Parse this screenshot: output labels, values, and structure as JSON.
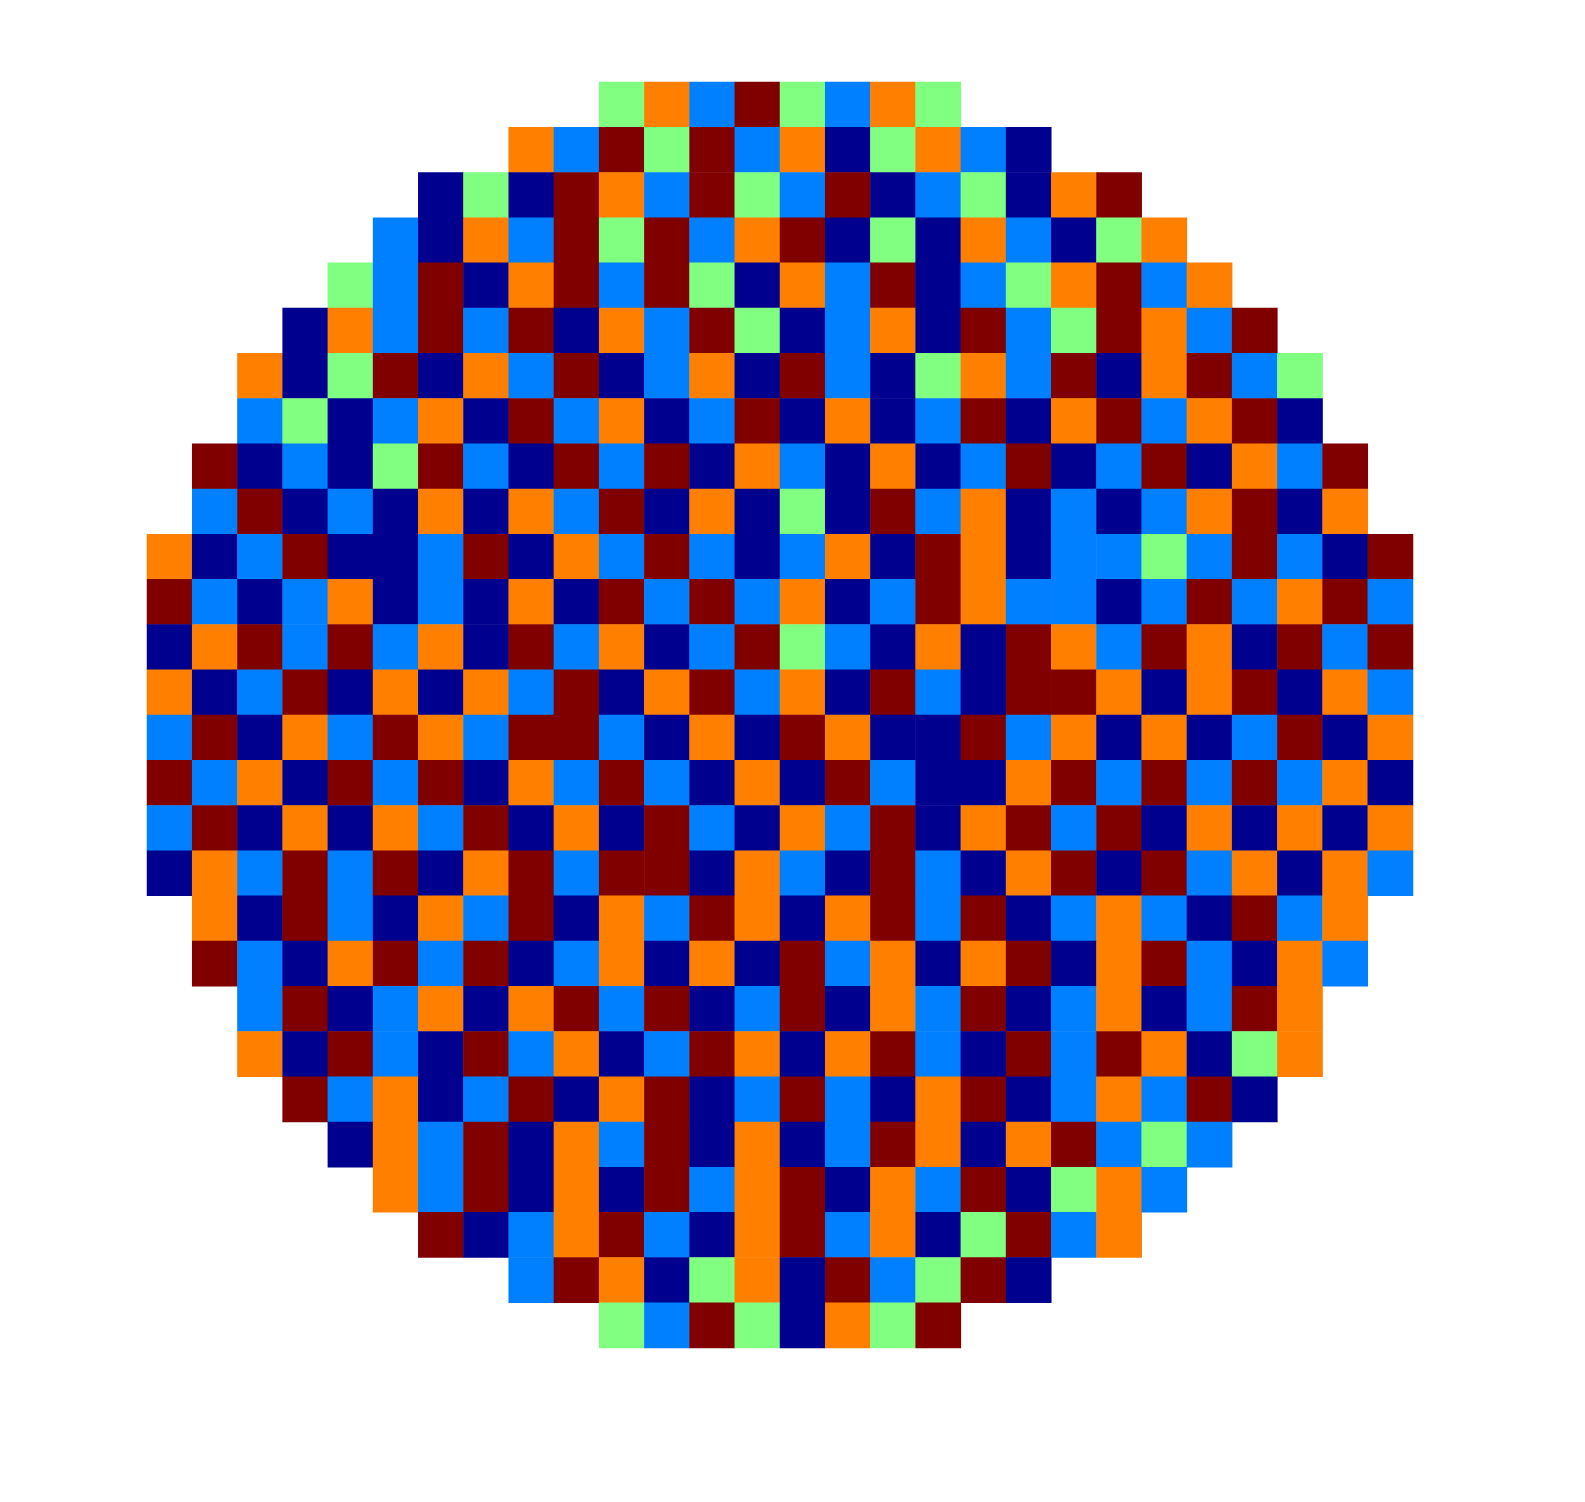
{
  "chart_data": {
    "type": "heatmap",
    "tick_labels": false,
    "value_range": [
      -2,
      2
    ],
    "cells": [
      [
        null,
        null,
        null,
        null,
        null,
        null,
        null,
        null,
        null,
        null,
        0,
        1,
        -1,
        2,
        0,
        -1,
        1,
        0,
        null,
        null,
        null,
        null,
        null,
        null,
        null,
        null,
        null,
        null
      ],
      [
        null,
        null,
        null,
        null,
        null,
        null,
        null,
        null,
        1,
        -1,
        2,
        0,
        2,
        -1,
        1,
        -2,
        0,
        1,
        -1,
        -2,
        null,
        null,
        null,
        null,
        null,
        null,
        null,
        null
      ],
      [
        null,
        null,
        null,
        null,
        null,
        null,
        -2,
        0,
        -2,
        2,
        1,
        -1,
        2,
        0,
        -1,
        2,
        -2,
        -1,
        0,
        -2,
        1,
        2,
        null,
        null,
        null,
        null,
        null,
        null
      ],
      [
        null,
        null,
        null,
        null,
        null,
        -1,
        -2,
        1,
        -1,
        2,
        0,
        2,
        -1,
        1,
        2,
        -2,
        0,
        -2,
        1,
        -1,
        -2,
        0,
        1,
        null,
        null,
        null,
        null,
        null
      ],
      [
        null,
        null,
        null,
        null,
        0,
        -1,
        2,
        -2,
        1,
        2,
        -1,
        2,
        0,
        -2,
        1,
        -1,
        2,
        -2,
        -1,
        0,
        1,
        2,
        -1,
        1,
        null,
        null,
        null,
        null
      ],
      [
        null,
        null,
        null,
        -2,
        1,
        -1,
        2,
        -1,
        2,
        -2,
        1,
        -1,
        2,
        0,
        -2,
        -1,
        1,
        -2,
        2,
        -1,
        0,
        2,
        1,
        -1,
        2,
        null,
        null,
        null
      ],
      [
        null,
        null,
        1,
        -2,
        0,
        2,
        -2,
        1,
        -1,
        2,
        -2,
        -1,
        1,
        -2,
        2,
        -1,
        -2,
        0,
        1,
        -1,
        2,
        -2,
        1,
        2,
        -1,
        0,
        null,
        null
      ],
      [
        null,
        null,
        -1,
        0,
        -2,
        -1,
        1,
        -2,
        2,
        -1,
        1,
        -2,
        -1,
        2,
        -2,
        1,
        -2,
        -1,
        2,
        -2,
        1,
        2,
        -1,
        1,
        2,
        -2,
        null,
        null
      ],
      [
        null,
        2,
        -2,
        -1,
        -2,
        0,
        2,
        -1,
        -2,
        2,
        -1,
        2,
        -2,
        1,
        -1,
        -2,
        1,
        -2,
        -1,
        2,
        -2,
        -1,
        2,
        -2,
        1,
        -1,
        2,
        null
      ],
      [
        null,
        -1,
        2,
        -2,
        -1,
        -2,
        1,
        -2,
        1,
        -1,
        2,
        -2,
        1,
        -2,
        0,
        -2,
        2,
        -1,
        1,
        -2,
        -1,
        -2,
        -1,
        1,
        2,
        -2,
        1,
        null
      ],
      [
        1,
        -2,
        -1,
        2,
        -2,
        -2,
        -1,
        2,
        -2,
        1,
        -1,
        2,
        -1,
        -2,
        -1,
        1,
        -2,
        2,
        1,
        -2,
        -1,
        -1,
        0,
        -1,
        2,
        -1,
        -2,
        2
      ],
      [
        2,
        -1,
        -2,
        -1,
        1,
        -2,
        -1,
        -2,
        1,
        -2,
        2,
        -1,
        2,
        -1,
        1,
        -2,
        -1,
        2,
        1,
        -1,
        -1,
        -2,
        -1,
        2,
        -1,
        1,
        2,
        -1
      ],
      [
        -2,
        1,
        2,
        -1,
        2,
        -1,
        1,
        -2,
        2,
        -1,
        1,
        -2,
        -1,
        2,
        0,
        -1,
        -2,
        1,
        -2,
        2,
        1,
        -1,
        2,
        1,
        -2,
        2,
        -1,
        2
      ],
      [
        1,
        -2,
        -1,
        2,
        -2,
        1,
        -2,
        1,
        -1,
        2,
        -2,
        1,
        2,
        -1,
        1,
        -2,
        2,
        -1,
        -2,
        2,
        2,
        1,
        -2,
        1,
        2,
        -2,
        1,
        -1
      ],
      [
        -1,
        2,
        -2,
        1,
        -1,
        2,
        1,
        -1,
        2,
        2,
        -1,
        -2,
        1,
        -2,
        2,
        1,
        -2,
        -2,
        2,
        -1,
        1,
        -2,
        1,
        -2,
        -1,
        2,
        -2,
        1
      ],
      [
        2,
        -1,
        1,
        -2,
        2,
        -1,
        2,
        -2,
        1,
        -1,
        2,
        -1,
        -2,
        1,
        -2,
        2,
        -1,
        -2,
        -2,
        1,
        2,
        -1,
        2,
        -1,
        2,
        -1,
        1,
        -2
      ],
      [
        -1,
        2,
        -2,
        1,
        -2,
        1,
        -1,
        2,
        -2,
        1,
        -2,
        2,
        -1,
        -2,
        1,
        -1,
        2,
        -2,
        1,
        2,
        -1,
        2,
        -2,
        1,
        -2,
        1,
        -2,
        1
      ],
      [
        -2,
        1,
        -1,
        2,
        -1,
        2,
        -2,
        1,
        2,
        -1,
        2,
        2,
        -2,
        1,
        -1,
        -2,
        2,
        -1,
        -2,
        1,
        2,
        -2,
        2,
        -1,
        1,
        -2,
        1,
        -1
      ],
      [
        null,
        1,
        -2,
        2,
        -1,
        -2,
        1,
        -1,
        2,
        -2,
        1,
        -1,
        2,
        1,
        -2,
        1,
        2,
        -1,
        2,
        -2,
        -1,
        1,
        -1,
        -2,
        2,
        -1,
        1,
        null
      ],
      [
        null,
        2,
        -1,
        -2,
        1,
        2,
        -1,
        2,
        -2,
        -1,
        1,
        -2,
        1,
        -2,
        2,
        -1,
        1,
        -2,
        1,
        2,
        -2,
        1,
        2,
        -1,
        -2,
        1,
        -1,
        null
      ],
      [
        null,
        null,
        -1,
        2,
        -2,
        -1,
        1,
        -2,
        1,
        2,
        -1,
        2,
        -2,
        -1,
        2,
        -2,
        1,
        -1,
        2,
        -2,
        -1,
        1,
        -2,
        -1,
        2,
        1,
        null,
        null
      ],
      [
        null,
        null,
        1,
        -2,
        2,
        -1,
        -2,
        2,
        -1,
        1,
        -2,
        -1,
        2,
        1,
        -2,
        1,
        2,
        -1,
        -2,
        2,
        -1,
        2,
        1,
        -2,
        0,
        1,
        null,
        null
      ],
      [
        null,
        null,
        null,
        2,
        -1,
        1,
        -2,
        -1,
        2,
        -2,
        1,
        2,
        -2,
        -1,
        2,
        -1,
        -2,
        1,
        2,
        -2,
        -1,
        1,
        -1,
        2,
        -2,
        null,
        null,
        null
      ],
      [
        null,
        null,
        null,
        null,
        -2,
        1,
        -1,
        2,
        -2,
        1,
        -1,
        2,
        -2,
        1,
        -2,
        -1,
        2,
        1,
        -2,
        1,
        2,
        -1,
        0,
        -1,
        null,
        null,
        null,
        null
      ],
      [
        null,
        null,
        null,
        null,
        null,
        1,
        -1,
        2,
        -2,
        1,
        -2,
        2,
        -1,
        1,
        2,
        -2,
        1,
        -1,
        2,
        -2,
        0,
        1,
        -1,
        null,
        null,
        null,
        null,
        null
      ],
      [
        null,
        null,
        null,
        null,
        null,
        null,
        2,
        -2,
        -1,
        1,
        2,
        -1,
        -2,
        1,
        2,
        -1,
        1,
        -2,
        0,
        2,
        -1,
        1,
        null,
        null,
        null,
        null,
        null,
        null
      ],
      [
        null,
        null,
        null,
        null,
        null,
        null,
        null,
        null,
        -1,
        2,
        1,
        -2,
        0,
        1,
        -2,
        2,
        -1,
        0,
        2,
        -2,
        null,
        null,
        null,
        null,
        null,
        null,
        null,
        null
      ],
      [
        null,
        null,
        null,
        null,
        null,
        null,
        null,
        null,
        null,
        null,
        0,
        -1,
        2,
        0,
        -2,
        1,
        0,
        2,
        null,
        null,
        null,
        null,
        null,
        null,
        null,
        null,
        null,
        null
      ]
    ]
  }
}
